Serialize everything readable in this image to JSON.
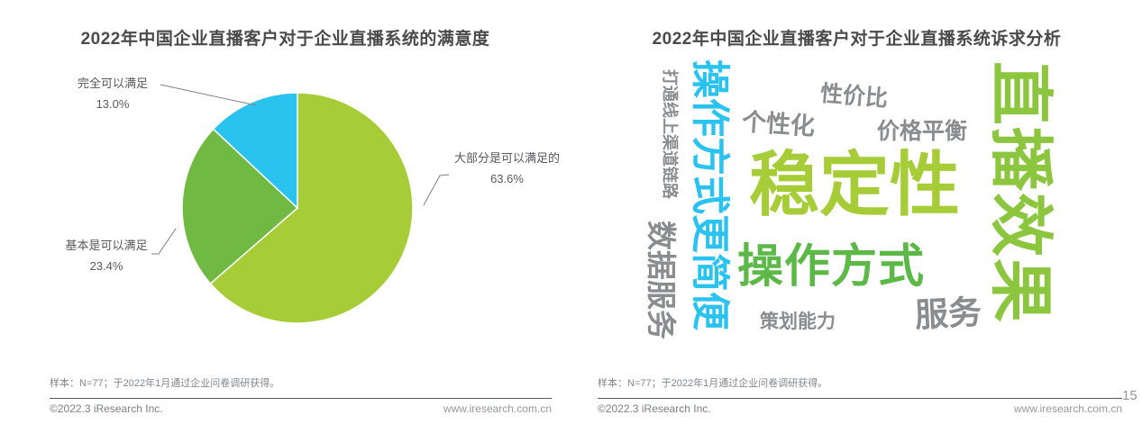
{
  "page": {
    "number": "15",
    "background": "#ffffff"
  },
  "palette": {
    "yellow_green": "#a6cd38",
    "green": "#70ba44",
    "mid_green": "#5cb947",
    "cyan": "#2ac2ef",
    "word_gray": "#8a8c8e",
    "title_gray": "#4a4a4b",
    "footer_gray": "#7d7f83"
  },
  "chart_data": [
    {
      "type": "pie",
      "title": "2022年中国企业直播客户对于企业直播系统的满意度",
      "labels": [
        "大部分是可以满足的",
        "基本是可以满足",
        "完全可以满足"
      ],
      "values": [
        63.6,
        23.4,
        13.0
      ],
      "value_labels": [
        "63.6%",
        "23.4%",
        "13.0%"
      ],
      "colors": [
        "#a6cd38",
        "#70ba44",
        "#2ac2ef"
      ],
      "start_angle_deg": 0,
      "direction": "clockwise",
      "legend_position": "callout-labels"
    },
    {
      "type": "wordcloud",
      "title": "2022年中国企业直播客户对于企业直播系统诉求分析",
      "words": [
        {
          "label": "稳定性",
          "weight": 10,
          "color": "#a6cd38",
          "orientation": "horizontal"
        },
        {
          "label": "直播效果",
          "weight": 10,
          "color": "#8cc63f",
          "orientation": "vertical"
        },
        {
          "label": "操作方式",
          "weight": 7,
          "color": "#5cb947",
          "orientation": "horizontal"
        },
        {
          "label": "操作方式更简便",
          "weight": 6,
          "color": "#2ac2ef",
          "orientation": "vertical"
        },
        {
          "label": "数据服务",
          "weight": 4,
          "color": "#8a8c8e",
          "orientation": "vertical"
        },
        {
          "label": "服务",
          "weight": 5,
          "color": "#8a8c8e",
          "orientation": "horizontal"
        },
        {
          "label": "个性化",
          "weight": 3,
          "color": "#8a8c8e",
          "orientation": "horizontal"
        },
        {
          "label": "性价比",
          "weight": 3,
          "color": "#8a8c8e",
          "orientation": "horizontal"
        },
        {
          "label": "价格平衡",
          "weight": 3,
          "color": "#8a8c8e",
          "orientation": "horizontal"
        },
        {
          "label": "策划能力",
          "weight": 2,
          "color": "#8a8c8e",
          "orientation": "horizontal"
        },
        {
          "label": "打通线上渠道链路",
          "weight": 2,
          "color": "#8a8c8e",
          "orientation": "vertical"
        }
      ]
    }
  ],
  "footer": {
    "footnote": "样本：N=77；于2022年1月通过企业问卷调研获得。",
    "copyright": "©2022.3 iResearch Inc.",
    "website": "www.iresearch.com.cn"
  }
}
